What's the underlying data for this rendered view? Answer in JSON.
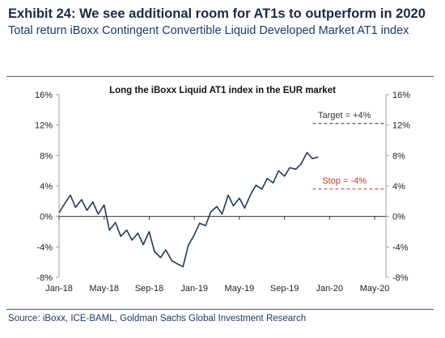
{
  "exhibit_title": "Exhibit 24: We see additional room for AT1s to outperform in 2020",
  "subtitle": "Total return iBoxx Contingent Convertible Liquid Developed Market AT1 index",
  "source": "Source: iBoxx, ICE-BAML, Goldman Sachs Global Investment Research",
  "colors": {
    "series": "#1f3a5f",
    "target": "#333333",
    "stop": "#c0392b",
    "axis": "#9aa0a6"
  },
  "chart_data": {
    "type": "line",
    "title": "Long the iBoxx Liquid AT1 index in the EUR market",
    "ylim": [
      -8,
      16
    ],
    "y_ticks": [
      "-8%",
      "-4%",
      "0%",
      "4%",
      "8%",
      "12%",
      "16%"
    ],
    "y_tick_values": [
      -8,
      -4,
      0,
      4,
      8,
      12,
      16
    ],
    "x_tick_labels": [
      "Jan-18",
      "May-18",
      "Sep-18",
      "Jan-19",
      "May-19",
      "Sep-19",
      "Jan-20",
      "May-20"
    ],
    "xlim": [
      "2018-01",
      "2020-06"
    ],
    "annotations": [
      {
        "label": "Target = +4%",
        "value": 12.2,
        "color": "#333333"
      },
      {
        "label": "Stop = -4%",
        "value": 3.6,
        "color": "#c0392b"
      }
    ],
    "series": [
      {
        "x": [
          "2018-01",
          "2018-01-15",
          "2018-02",
          "2018-02-15",
          "2018-03",
          "2018-03-15",
          "2018-04",
          "2018-04-15",
          "2018-05",
          "2018-05-15",
          "2018-06",
          "2018-06-15",
          "2018-07",
          "2018-07-15",
          "2018-08",
          "2018-08-15",
          "2018-09",
          "2018-09-15",
          "2018-10",
          "2018-10-15",
          "2018-11",
          "2018-11-15",
          "2018-12",
          "2018-12-15",
          "2019-01",
          "2019-01-15",
          "2019-02",
          "2019-02-15",
          "2019-03",
          "2019-03-15",
          "2019-04",
          "2019-04-15",
          "2019-05",
          "2019-05-15",
          "2019-06",
          "2019-06-15",
          "2019-07",
          "2019-07-15",
          "2019-08",
          "2019-08-15",
          "2019-09",
          "2019-09-15",
          "2019-10",
          "2019-10-15",
          "2019-11",
          "2019-11-15",
          "2019-12"
        ],
        "y": [
          0.5,
          1.6,
          2.8,
          1.2,
          2.2,
          0.8,
          1.9,
          0.3,
          1.5,
          -1.8,
          -0.8,
          -2.6,
          -1.8,
          -3.1,
          -2.2,
          -3.7,
          -2.0,
          -4.6,
          -5.4,
          -4.4,
          -5.8,
          -6.2,
          -6.6,
          -3.8,
          -2.4,
          -0.9,
          -1.2,
          0.6,
          1.3,
          0.3,
          2.8,
          1.4,
          2.4,
          1.1,
          2.9,
          4.1,
          3.6,
          5.0,
          4.4,
          6.0,
          5.3,
          6.4,
          6.2,
          6.9,
          8.4,
          7.6,
          7.8
        ]
      }
    ]
  }
}
